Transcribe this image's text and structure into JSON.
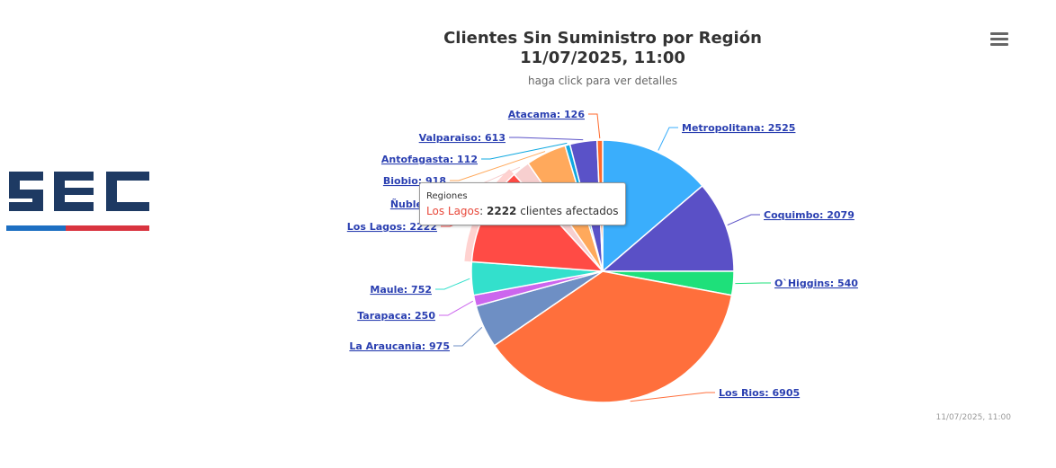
{
  "title_line1": "Clientes Sin Suministro por Región",
  "title_line2": "11/07/2025, 11:00",
  "subtitle": "haga click para ver detalles",
  "credit": "11/07/2025, 11:00",
  "menu_icon": "hamburger-menu-icon",
  "logo": {
    "text": "SEC",
    "colors": {
      "main": "#1e3a63",
      "blue": "#1d6fc2",
      "red": "#d9343f"
    }
  },
  "tooltip": {
    "header": "Regiones",
    "region": "Los Lagos",
    "separator": ": ",
    "value": "2222",
    "suffix": " clientes afectados"
  },
  "chart_data": {
    "type": "pie",
    "title": "Clientes Sin Suministro por Región 11/07/2025, 11:00",
    "subtitle": "haga click para ver detalles",
    "series_name": "Regiones",
    "highlighted": "Los Lagos",
    "slices": [
      {
        "name": "Metropolitana",
        "value": 2525,
        "color": "#3aaefc",
        "label": "Metropolitana: 2525"
      },
      {
        "name": "Coquimbo",
        "value": 2079,
        "color": "#5a50c6",
        "label": "Coquimbo: 2079"
      },
      {
        "name": "O`Higgins",
        "value": 540,
        "color": "#1ee07a",
        "label": "O`Higgins: 540"
      },
      {
        "name": "Los Rios",
        "value": 6905,
        "color": "#ff6f3c",
        "label": "Los Rios: 6905"
      },
      {
        "name": "La Araucania",
        "value": 975,
        "color": "#6e8fc4",
        "label": "La Araucania: 975"
      },
      {
        "name": "Tarapaca",
        "value": 250,
        "color": "#cc66ee",
        "label": "Tarapaca: 250"
      },
      {
        "name": "Maule",
        "value": 752,
        "color": "#33e0cc",
        "label": "Maule: 752"
      },
      {
        "name": "Los Lagos",
        "value": 2222,
        "color": "#ff4b45",
        "label": "Los Lagos: 2222"
      },
      {
        "name": "Ñuble",
        "value": 400,
        "color": "#f7cfcf",
        "label": "Ñuble"
      },
      {
        "name": "Biobio",
        "value": 918,
        "color": "#ffa95c",
        "label": "Biobio: 918"
      },
      {
        "name": "Antofagasta",
        "value": 112,
        "color": "#0fa8e0",
        "label": "Antofagasta: 112"
      },
      {
        "name": "Valparaiso",
        "value": 613,
        "color": "#5a52c8",
        "label": "Valparaiso: 613"
      },
      {
        "name": "Atacama",
        "value": 126,
        "color": "#ff6a2c",
        "label": "Atacama: 126"
      }
    ]
  }
}
